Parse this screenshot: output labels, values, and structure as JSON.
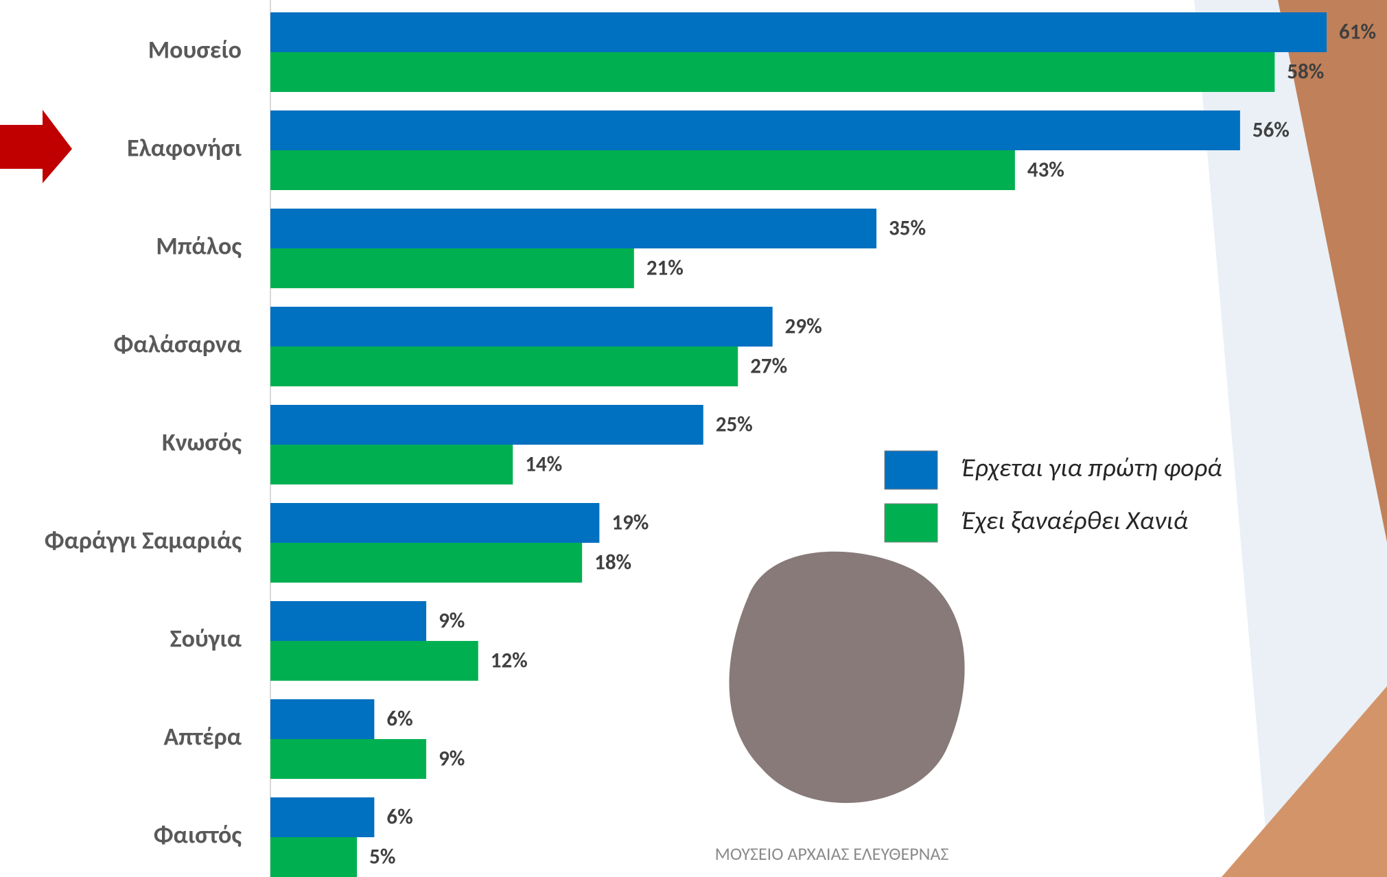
{
  "chart_data": {
    "type": "barh",
    "categories": [
      "Μουσείο",
      "Ελαφονήσι",
      "Μπάλος",
      "Φαλάσαρνα",
      "Κνωσός",
      "Φαράγγι Σαμαριάς",
      "Σούγια",
      "Απτέρα",
      "Φαιστός"
    ],
    "series": [
      {
        "name": "Έρχεται για πρώτη φορά",
        "color": "#0070c0",
        "values": [
          61,
          56,
          35,
          29,
          25,
          19,
          9,
          6,
          6
        ],
        "value_labels": [
          "61%",
          "56%",
          "35%",
          "29%",
          "25%",
          "19%",
          "9%",
          "6%",
          "6%"
        ]
      },
      {
        "name": "Έχει ξαναέρθει Χανιά",
        "color": "#00b050",
        "values": [
          58,
          43,
          21,
          27,
          14,
          18,
          12,
          9,
          5
        ],
        "value_labels": [
          "58%",
          "43%",
          "21%",
          "27%",
          "14%",
          "18%",
          "12%",
          "9%",
          "5%"
        ]
      }
    ],
    "legend": "center-right",
    "logo_text": "ΜΟΥΣΕΙΟ ΑΡΧΑΙΑΣ ΕΛΕΥΘΕΡΝΑΣ"
  }
}
